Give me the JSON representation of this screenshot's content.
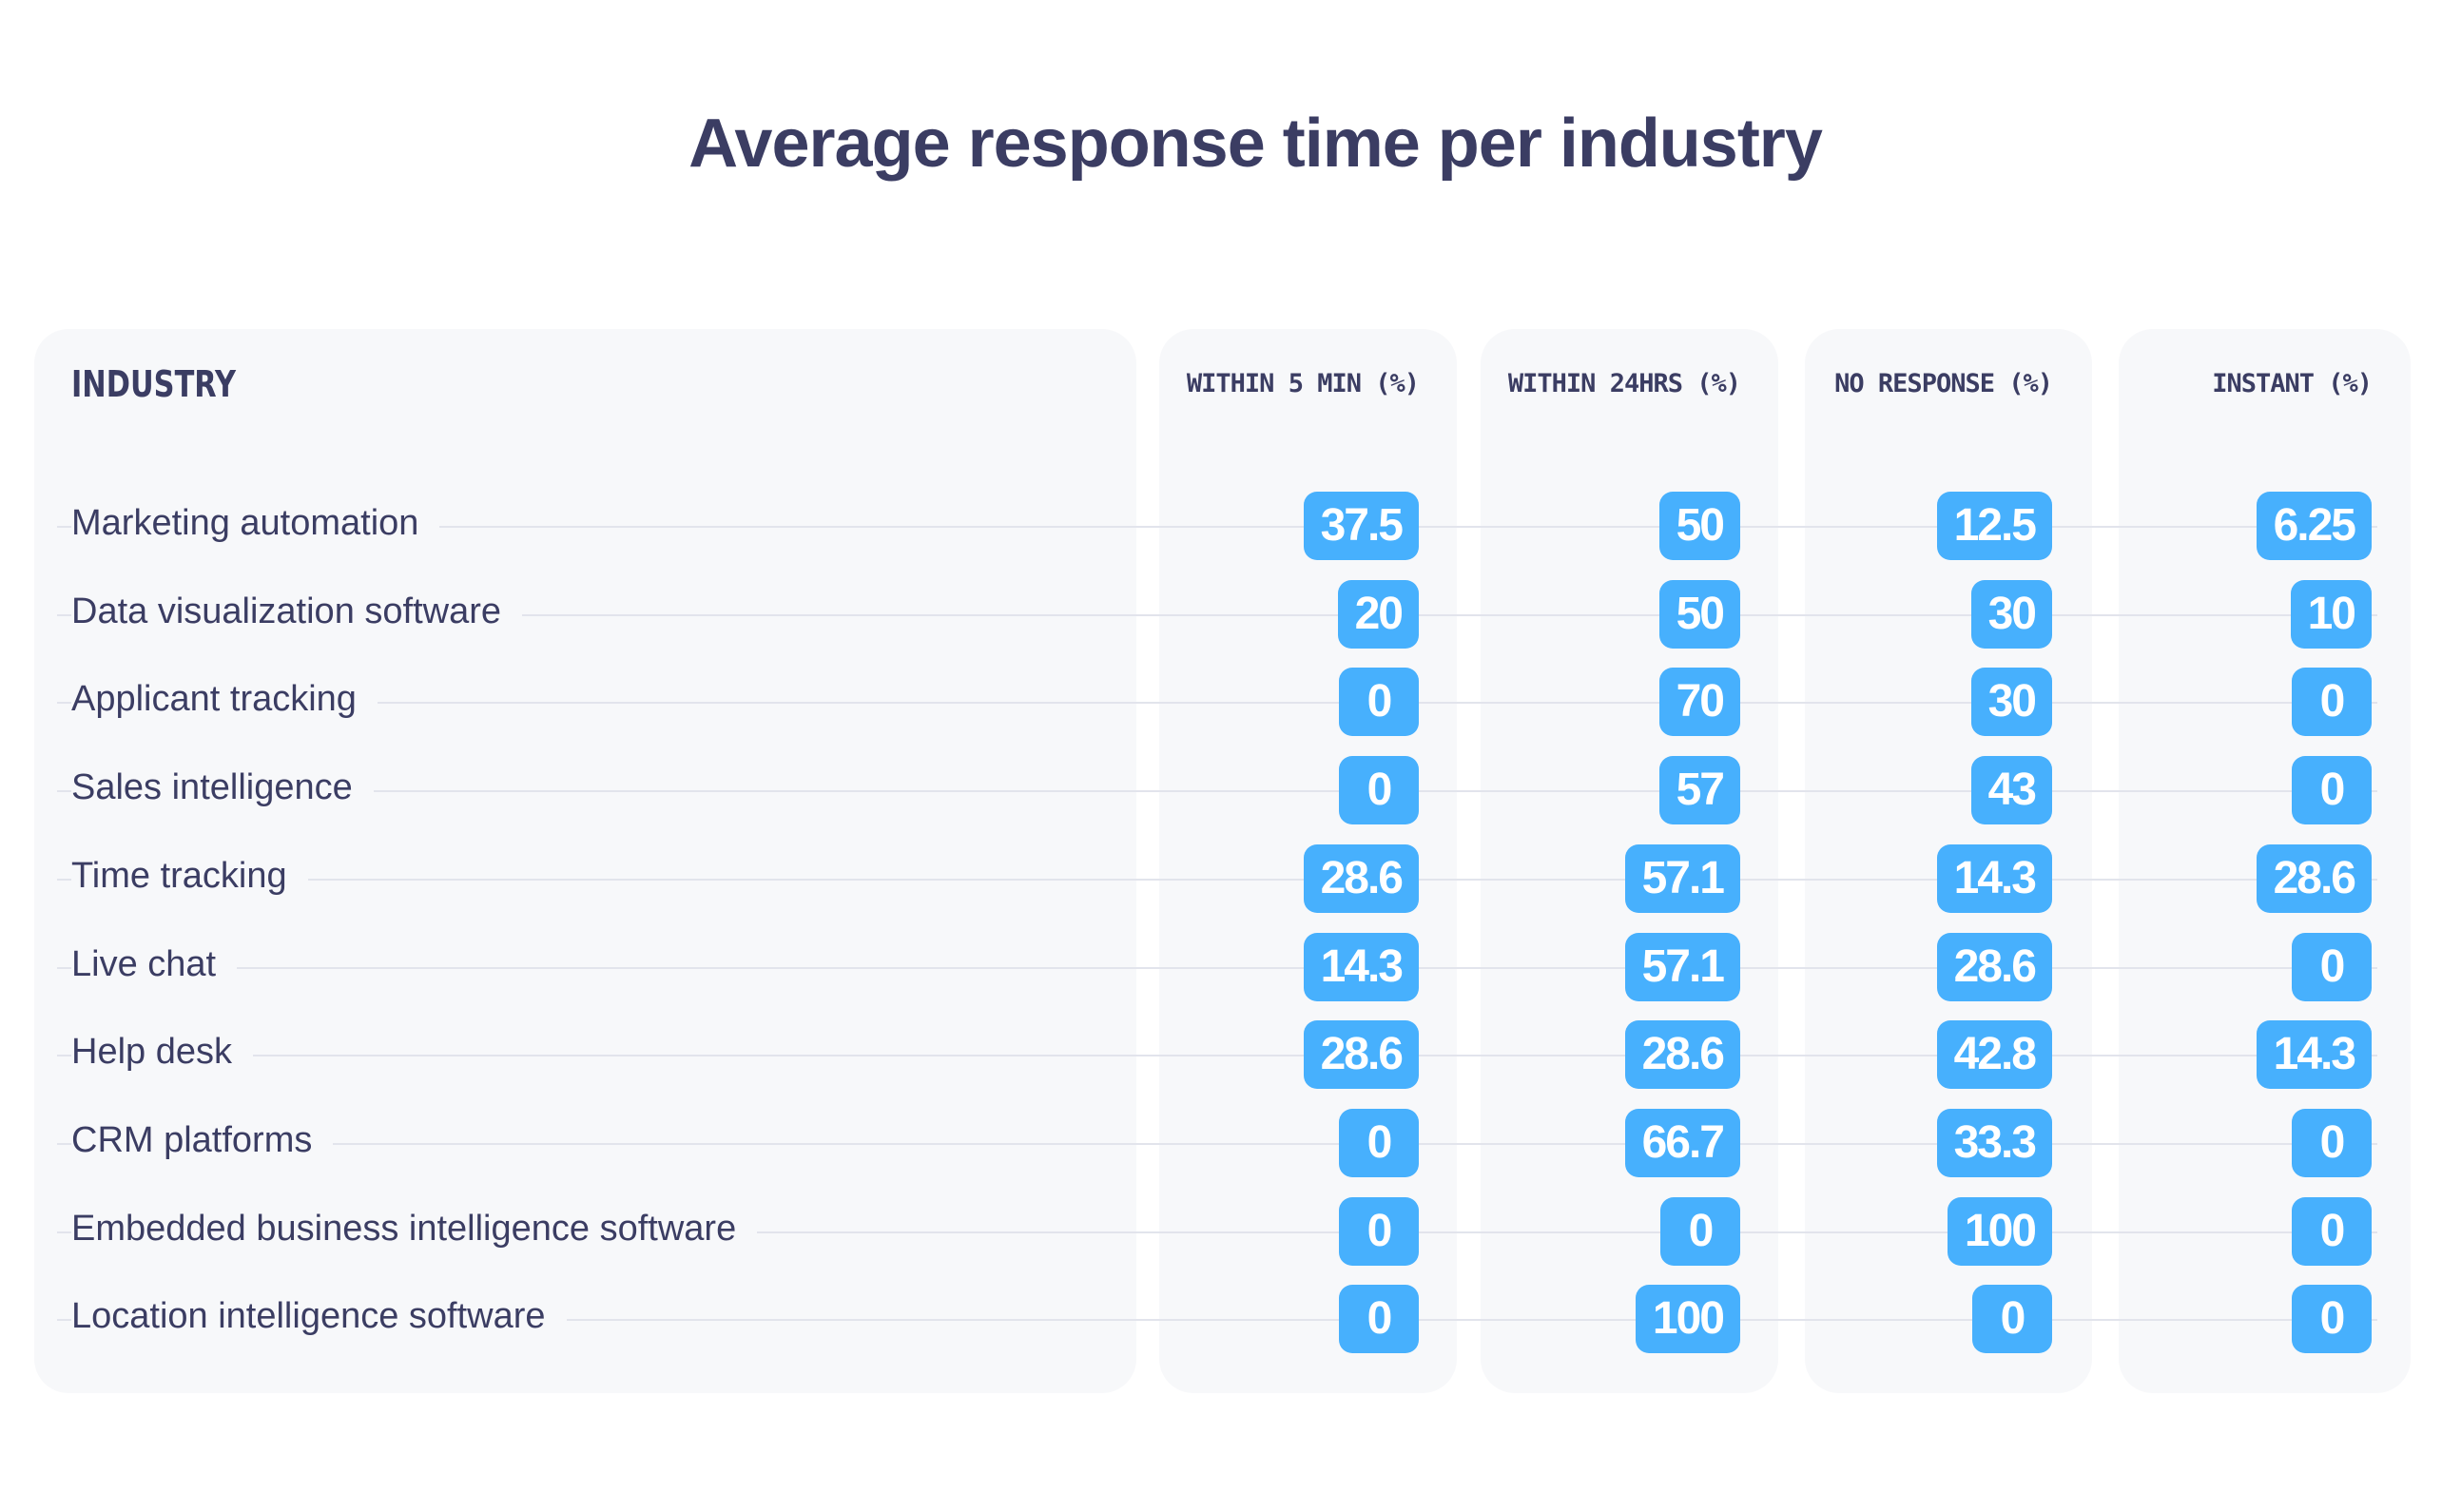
{
  "title": "Average response time per industry",
  "chart_data": {
    "type": "table",
    "title": "Average response time per industry",
    "columns": [
      "INDUSTRY",
      "WITHIN 5 MIN (%)",
      "WITHIN 24HRS (%)",
      "NO RESPONSE (%)",
      "INSTANT (%)"
    ],
    "rows": [
      {
        "industry": "Marketing automation",
        "values": [
          "37.5",
          "50",
          "12.5",
          "6.25"
        ]
      },
      {
        "industry": "Data visualization software",
        "values": [
          "20",
          "50",
          "30",
          "10"
        ]
      },
      {
        "industry": "Applicant tracking",
        "values": [
          "0",
          "70",
          "30",
          "0"
        ]
      },
      {
        "industry": "Sales intelligence",
        "values": [
          "0",
          "57",
          "43",
          "0"
        ]
      },
      {
        "industry": "Time tracking",
        "values": [
          "28.6",
          "57.1",
          "14.3",
          "28.6"
        ]
      },
      {
        "industry": "Live chat",
        "values": [
          "14.3",
          "57.1",
          "28.6",
          "0"
        ]
      },
      {
        "industry": "Help desk",
        "values": [
          "28.6",
          "28.6",
          "42.8",
          "14.3"
        ]
      },
      {
        "industry": "CRM platforms",
        "values": [
          "0",
          "66.7",
          "33.3",
          "0"
        ]
      },
      {
        "industry": "Embedded business intelligence software",
        "values": [
          "0",
          "0",
          "100",
          "0"
        ]
      },
      {
        "industry": "Location intelligence software",
        "values": [
          "0",
          "100",
          "0",
          "0"
        ]
      }
    ]
  },
  "colors": {
    "text": "#3b3d63",
    "badge": "#47b0fd",
    "panel": "#f7f8fa",
    "rule": "#e2e4ec"
  }
}
